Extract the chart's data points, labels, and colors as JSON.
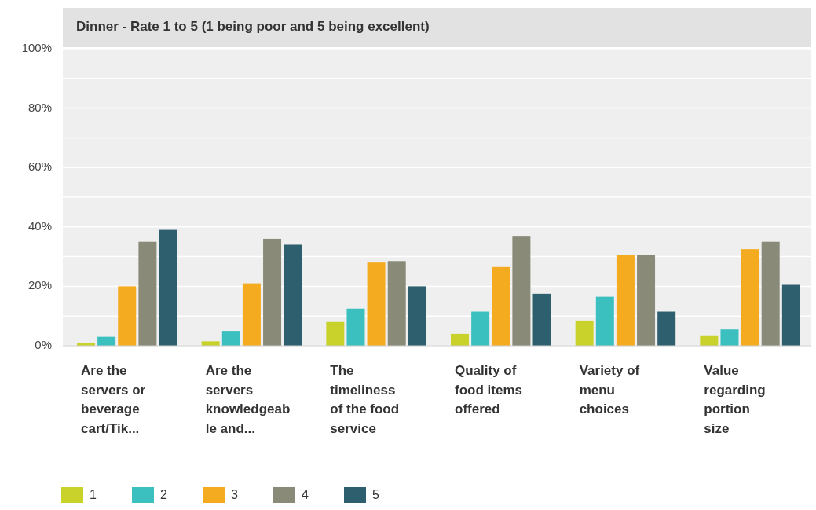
{
  "chart_data": {
    "type": "bar",
    "title": "Dinner  - Rate 1 to 5 (1 being poor and 5 being excellent)",
    "categories": [
      "Are the\nservers or\nbeverage\ncart/Tik...",
      "Are the\nservers\nknowledgeab\nle and...",
      "The\ntimeliness\nof the food\nservice",
      "Quality of\nfood items\noffered",
      "Variety of\nmenu\nchoices",
      "Value\nregarding\nportion\nsize"
    ],
    "series": [
      {
        "name": "1",
        "color": "#c9d22b",
        "values": [
          1,
          1.5,
          8,
          4,
          8.5,
          3.5
        ]
      },
      {
        "name": "2",
        "color": "#3bbfbf",
        "values": [
          3,
          5,
          12.5,
          11.5,
          16.5,
          5.5
        ]
      },
      {
        "name": "3",
        "color": "#f5ab1f",
        "values": [
          20,
          21,
          28,
          26.5,
          30.5,
          32.5
        ]
      },
      {
        "name": "4",
        "color": "#8a8a78",
        "values": [
          35,
          36,
          28.5,
          37,
          30.5,
          35
        ]
      },
      {
        "name": "5",
        "color": "#2e5f6e",
        "values": [
          39,
          34,
          20,
          17.5,
          11.5,
          20.5
        ]
      }
    ],
    "ylim": [
      0,
      100
    ],
    "yticks": [
      {
        "value": 0,
        "label": "0%"
      },
      {
        "value": 10,
        "label": null
      },
      {
        "value": 20,
        "label": "20%"
      },
      {
        "value": 30,
        "label": null
      },
      {
        "value": 40,
        "label": "40%"
      },
      {
        "value": 50,
        "label": null
      },
      {
        "value": 60,
        "label": "60%"
      },
      {
        "value": 70,
        "label": null
      },
      {
        "value": 80,
        "label": "80%"
      },
      {
        "value": 90,
        "label": null
      },
      {
        "value": 100,
        "label": "100%"
      }
    ],
    "grid": true,
    "legend": "bottom left"
  }
}
